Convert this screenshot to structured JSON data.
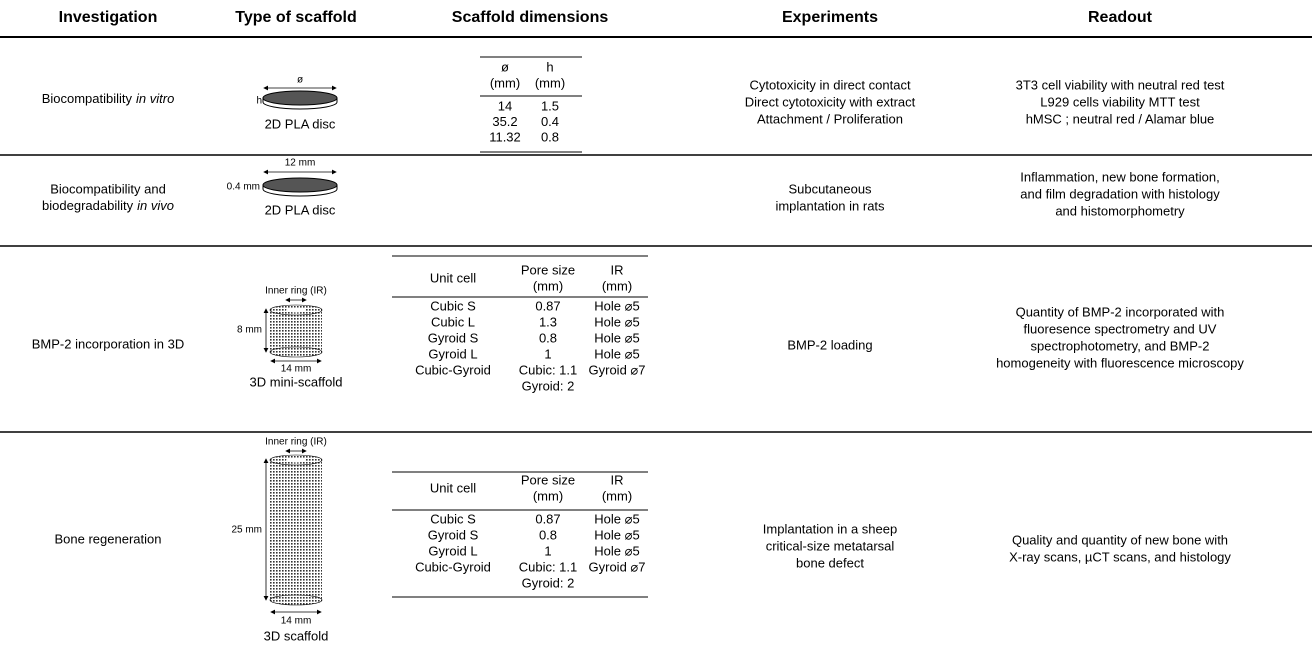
{
  "header": [
    "Investigation",
    "Type of scaffold",
    "Scaffold dimensions",
    "Experiments",
    "Readout"
  ],
  "rows": [
    {
      "investigation": [
        "Biocompatibility",
        "in vitro"
      ],
      "scaffold": {
        "diameter": "ø",
        "height": "h",
        "caption": "2D PLA disc"
      },
      "dimensions": {
        "headers": [
          [
            "ø",
            "(mm)"
          ],
          [
            "h",
            "(mm)"
          ]
        ],
        "rows": [
          [
            "14",
            "1.5"
          ],
          [
            "35.2",
            "0.4"
          ],
          [
            "11.32",
            "0.8"
          ]
        ]
      },
      "experiments": [
        "Cytotoxicity in direct contact",
        "Direct cytotoxicity with extract",
        "Attachment / Proliferation"
      ],
      "readout": [
        "3T3 cell viability with neutral red test",
        "L929 cells viability MTT test",
        "hMSC ; neutral red / Alamar blue"
      ]
    },
    {
      "investigation": [
        "Biocompatibility and",
        "biodegradability",
        "in vivo"
      ],
      "scaffold": {
        "diameter": "12 mm",
        "height": "0.4 mm",
        "caption": "2D PLA disc"
      },
      "experiments": [
        "Subcutaneous",
        "implantation in rats"
      ],
      "readout": [
        "Inflammation, new bone formation,",
        "and film degradation with histology",
        "and histomorphometry"
      ]
    },
    {
      "investigation": [
        "BMP-2 incorporation in 3D"
      ],
      "scaffold": {
        "inner_ring": "Inner ring (IR)",
        "height": "8 mm",
        "diameter": "14 mm",
        "caption": "3D mini-scaffold"
      },
      "dimensions": {
        "headers": [
          [
            "Unit cell"
          ],
          [
            "Pore size",
            "(mm)"
          ],
          [
            "IR",
            "(mm)"
          ]
        ],
        "rows": [
          [
            "Cubic S",
            "0.87",
            "Hole ⌀5"
          ],
          [
            "Cubic L",
            "1.3",
            "Hole ⌀5"
          ],
          [
            "Gyroid S",
            "0.8",
            "Hole ⌀5"
          ],
          [
            "Gyroid L",
            "1",
            "Hole ⌀5"
          ],
          [
            "Cubic-Gyroid",
            [
              "Cubic: 1.1",
              "Gyroid: 2"
            ],
            "Gyroid ⌀7"
          ]
        ]
      },
      "experiments": [
        "BMP-2 loading"
      ],
      "readout": [
        "Quantity of BMP-2 incorporated with",
        "fluoresence spectrometry and UV",
        "spectrophotometry, and BMP-2",
        "homogeneity with fluorescence microscopy"
      ]
    },
    {
      "investigation": [
        "Bone regeneration"
      ],
      "scaffold": {
        "inner_ring": "Inner ring (IR)",
        "height": "25 mm",
        "diameter": "14 mm",
        "caption": "3D scaffold"
      },
      "dimensions": {
        "headers": [
          [
            "Unit cell"
          ],
          [
            "Pore size",
            "(mm)"
          ],
          [
            "IR",
            "(mm)"
          ]
        ],
        "rows": [
          [
            "Cubic S",
            "0.87",
            "Hole ⌀5"
          ],
          [
            "Gyroid S",
            "0.8",
            "Hole ⌀5"
          ],
          [
            "Gyroid L",
            "1",
            "Hole ⌀5"
          ],
          [
            "Cubic-Gyroid",
            [
              "Cubic: 1.1",
              "Gyroid: 2"
            ],
            "Gyroid ⌀7"
          ]
        ]
      },
      "experiments": [
        "Implantation in a sheep",
        "critical-size metatarsal",
        "bone defect"
      ],
      "readout": [
        "Quality and quantity of new bone with",
        "X-ray scans, µCT scans, and histology"
      ]
    }
  ]
}
